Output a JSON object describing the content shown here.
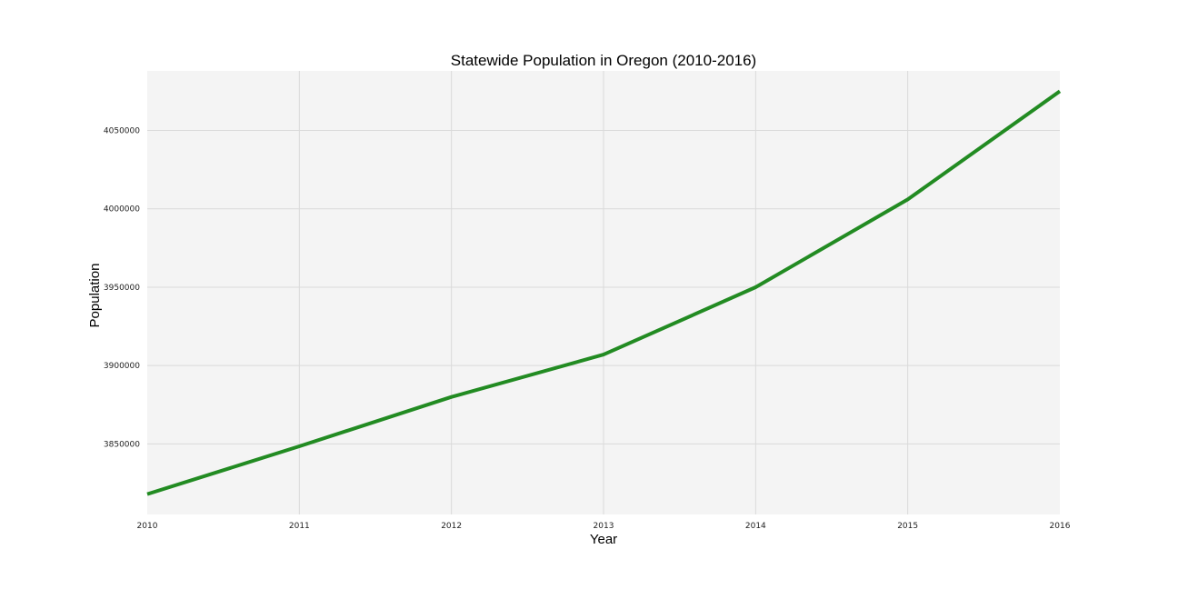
{
  "chart_data": {
    "type": "line",
    "title": "Statewide Population in Oregon (2010-2016)",
    "xlabel": "Year",
    "ylabel": "Population",
    "x": [
      2010,
      2011,
      2012,
      2013,
      2014,
      2015,
      2016
    ],
    "series": [
      {
        "values": [
          3818000,
          3848500,
          3880000,
          3907000,
          3950000,
          4006000,
          4075000
        ],
        "color": "#228B22"
      }
    ],
    "xlim": [
      2010,
      2016
    ],
    "ylim": [
      3805000,
      4088000
    ],
    "xticks": [
      2010,
      2011,
      2012,
      2013,
      2014,
      2015,
      2016
    ],
    "xtick_labels": [
      "2010",
      "2011",
      "2012",
      "2013",
      "2014",
      "2015",
      "2016"
    ],
    "yticks": [
      3850000,
      3900000,
      3950000,
      4000000,
      4050000
    ],
    "ytick_labels": [
      "3850000",
      "3900000",
      "3950000",
      "4000000",
      "4050000"
    ],
    "grid": true,
    "plot_background": "#f4f4f4"
  }
}
